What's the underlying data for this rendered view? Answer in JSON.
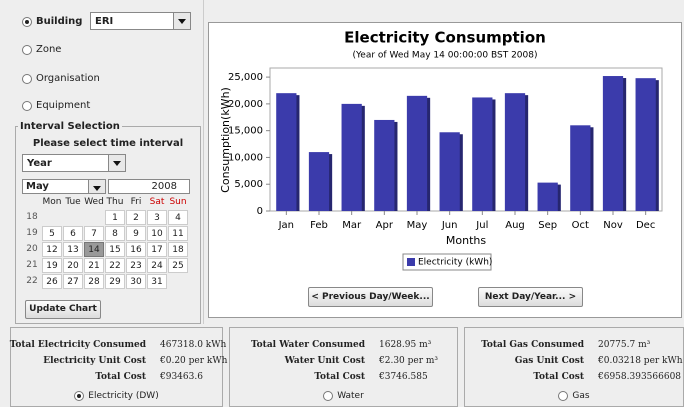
{
  "sidebar": {
    "options": [
      "Building",
      "Zone",
      "Organisation",
      "Equipment"
    ],
    "building_select": "ERI",
    "interval_title": "Interval Selection",
    "interval_prompt": "Please select time interval",
    "interval_select": "Year",
    "month_select": "May",
    "year": "2008",
    "weekdays": [
      "Mon",
      "Tue",
      "Wed",
      "Thu",
      "Fri",
      "Sat",
      "Sun"
    ],
    "weeks": [
      "18",
      "19",
      "20",
      "21",
      "22"
    ],
    "days": [
      [
        "1",
        "2",
        "3",
        "4"
      ],
      [
        "5",
        "6",
        "7",
        "8",
        "9",
        "10",
        "11"
      ],
      [
        "12",
        "13",
        "14",
        "15",
        "16",
        "17",
        "18"
      ],
      [
        "19",
        "20",
        "21",
        "22",
        "23",
        "24",
        "25"
      ],
      [
        "26",
        "27",
        "28",
        "29",
        "30",
        "31"
      ]
    ],
    "selected_day": "14",
    "update_button": "Update Chart"
  },
  "chart_data": {
    "type": "bar",
    "title": "Electricity Consumption",
    "subtitle": "(Year of Wed May 14 00:00:00 BST 2008)",
    "x_label": "Months",
    "y_label": "Consumption(kWh)",
    "categories": [
      "Jan",
      "Feb",
      "Mar",
      "Apr",
      "May",
      "Jun",
      "Jul",
      "Aug",
      "Sep",
      "Oct",
      "Nov",
      "Dec"
    ],
    "series": [
      {
        "name": "Electricity (kWh)",
        "color": "#3b3bab",
        "values": [
          22000,
          11000,
          20000,
          17000,
          21500,
          14700,
          21200,
          22000,
          5300,
          16000,
          25200,
          24800
        ]
      }
    ],
    "ylim": [
      0,
      26700
    ],
    "yticks": [
      0,
      {
        "value": 5000,
        "label": "5,000"
      },
      {
        "value": 10000,
        "label": "10,000"
      },
      {
        "value": 15000,
        "label": "15,000"
      },
      {
        "value": 20000,
        "label": "20,000"
      },
      {
        "value": 25000,
        "label": "25,000"
      }
    ],
    "grid": false,
    "legend": "bottom"
  },
  "buttons": {
    "previous": "< Previous Day/Week...",
    "next": "Next Day/Year... >"
  },
  "summary": [
    {
      "rows": [
        [
          "Total Electricity Consumed",
          "467318.0 kWh"
        ],
        [
          "Electricity Unit Cost",
          "€0.20 per kWh"
        ],
        [
          "Total Cost",
          "€93463.6"
        ]
      ],
      "radio": "Electricity (DW)",
      "selected": true
    },
    {
      "rows": [
        [
          "Total Water Consumed",
          "1628.95 m³"
        ],
        [
          "Water Unit Cost",
          "€2.30 per m³"
        ],
        [
          "Total Cost",
          "€3746.585"
        ]
      ],
      "radio": "Water",
      "selected": false
    },
    {
      "rows": [
        [
          "Total Gas Consumed",
          "20775.7 m³"
        ],
        [
          "Gas Unit Cost",
          "€0.03218 per kWh"
        ],
        [
          "Total Cost",
          "€6958.393566608"
        ]
      ],
      "radio": "Gas",
      "selected": false
    }
  ]
}
